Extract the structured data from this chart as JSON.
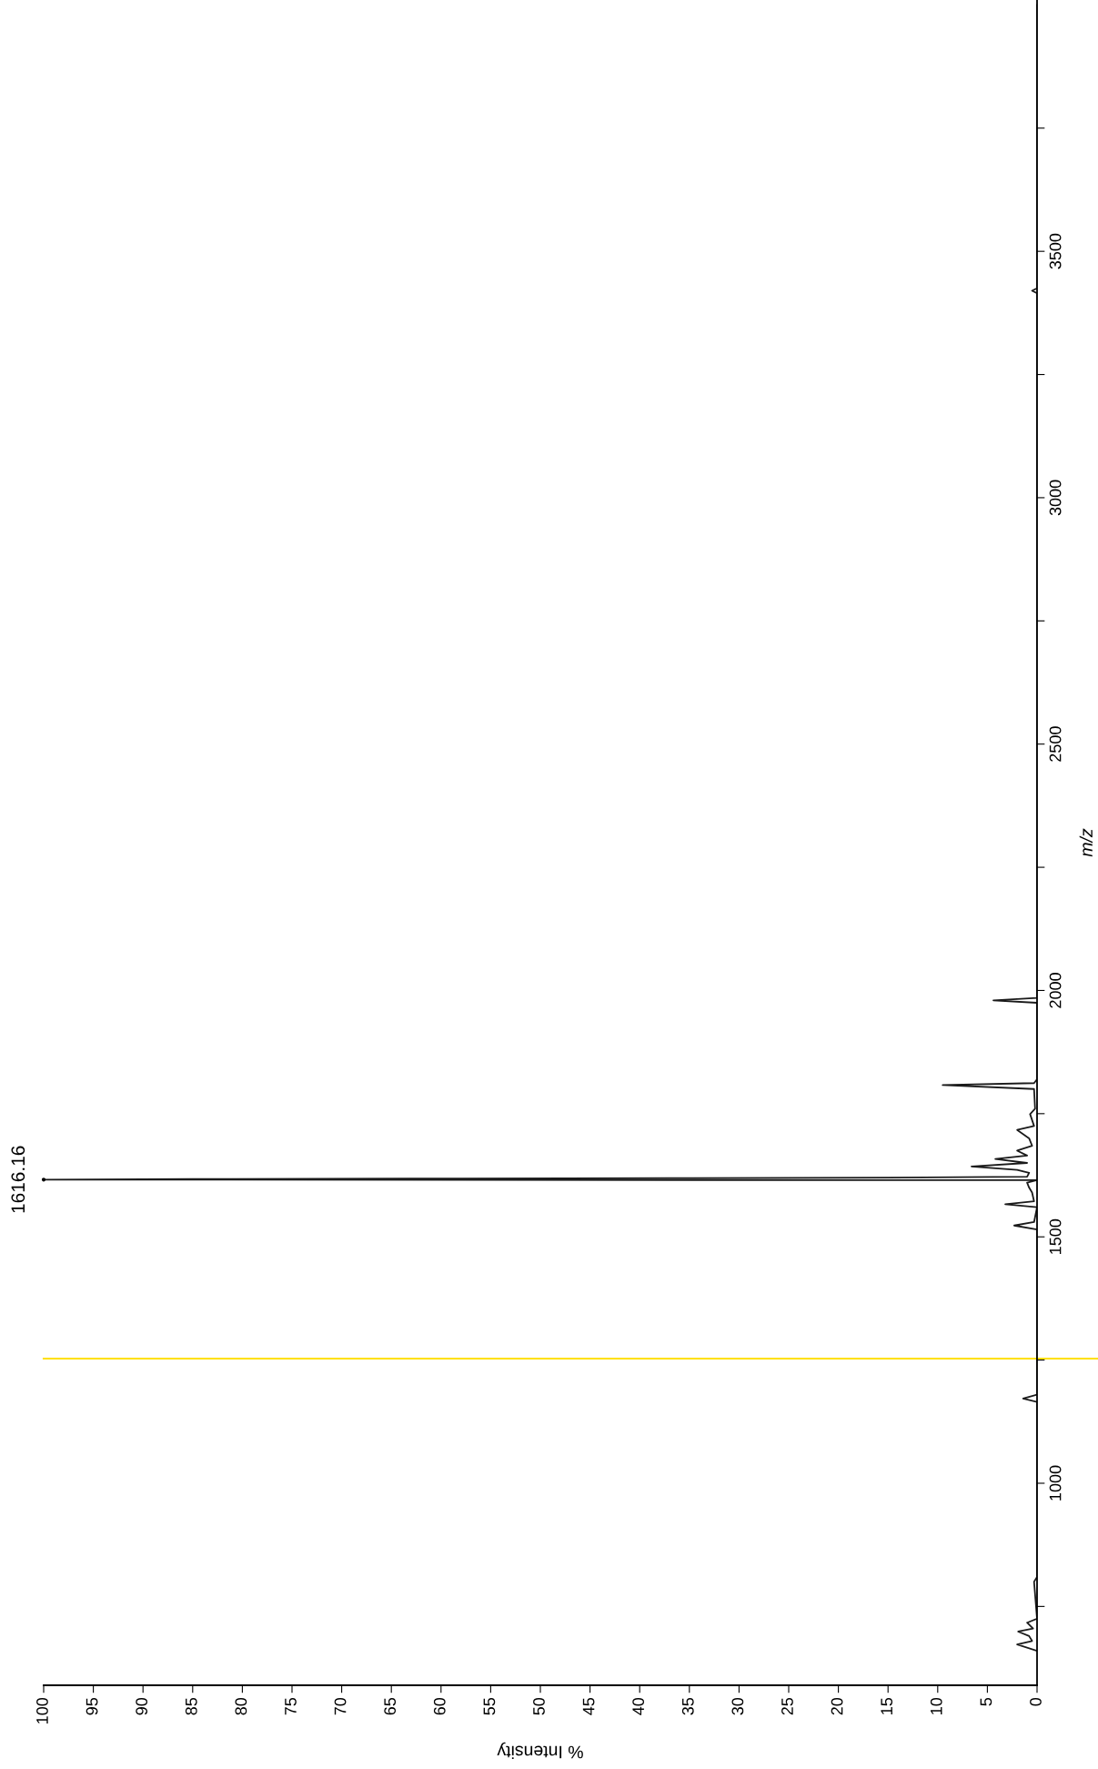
{
  "chart_data": {
    "type": "line",
    "orientation": "horizontal",
    "xlabel": "% Intensity",
    "ylabel": "m/z",
    "x": [
      660,
      673,
      680,
      690,
      699,
      705,
      717,
      725,
      800,
      810,
      1165,
      1172,
      1180,
      1515,
      1523,
      1530,
      1560,
      1566,
      1572,
      1590,
      1600,
      1610,
      1615,
      1616.16,
      1617.16,
      1618.16,
      1619.16,
      1620.16,
      1622,
      1630,
      1636,
      1643,
      1650,
      1658,
      1665,
      1675,
      1685,
      1700,
      1717,
      1725,
      1749,
      1760,
      1800,
      1808,
      1812,
      1820,
      1975,
      1980,
      1985,
      3415,
      3420,
      3425,
      4000
    ],
    "series": [
      {
        "color": "#1a1a1a",
        "values": [
          0,
          2.0,
          0.5,
          0.8,
          1.9,
          0.4,
          1.0,
          0,
          0.3,
          0,
          0,
          1.4,
          0,
          0,
          2.3,
          0.3,
          0,
          3.2,
          0.3,
          0.5,
          0.8,
          1.0,
          0,
          100,
          85,
          63,
          37,
          15,
          1,
          0.8,
          2,
          6.6,
          1,
          4.2,
          1,
          2,
          0.5,
          0.8,
          2.0,
          0.3,
          0.7,
          0.2,
          0.3,
          9.5,
          0.3,
          0,
          0,
          4.4,
          0,
          0,
          0.5,
          0,
          0
        ]
      }
    ],
    "xlim": [
      100,
      0
    ],
    "xticks": [
      0,
      5,
      10,
      15,
      20,
      25,
      30,
      35,
      40,
      45,
      50,
      55,
      60,
      65,
      70,
      75,
      80,
      85,
      90,
      95,
      100
    ],
    "ylim": [
      590,
      4010
    ],
    "yticks": [
      {
        "value": 750,
        "label": null
      },
      1000,
      {
        "value": 1250,
        "label": null
      },
      1500,
      {
        "value": 1750,
        "label": null
      },
      2000,
      {
        "value": 2250,
        "label": null
      },
      2500,
      {
        "value": 2750,
        "label": null
      },
      3000,
      {
        "value": 3250,
        "label": null
      },
      3500,
      {
        "value": 3750,
        "label": null
      }
    ],
    "ref_lines": [
      {
        "axis": "y",
        "value": 1253,
        "color": "#ffe000"
      }
    ],
    "annotations": [
      {
        "text": "1616.16",
        "x": 100,
        "y": 1616.16
      }
    ],
    "grid": false,
    "legend": false,
    "marker": "none",
    "line_style": "solid"
  }
}
